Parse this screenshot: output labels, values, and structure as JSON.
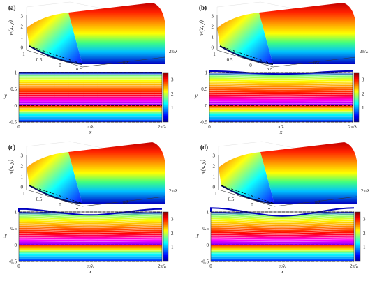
{
  "chart_data": [
    {
      "panel": "(a)",
      "type": "surface+heatmap",
      "surface": {
        "zlabel": "w(x, y)",
        "z_ticks": [
          "0",
          "1",
          "2",
          "3"
        ],
        "y_ticks": [
          "1",
          "0.5",
          "0",
          "-0.5"
        ],
        "x_ticks": [
          "π/λ",
          "2π/λ"
        ]
      },
      "contour": {
        "xlabel": "x",
        "ylabel": "y",
        "x_ticks": [
          "0",
          "π/λ",
          "2π/λ"
        ],
        "y_ticks": [
          "1",
          "0.5",
          "0",
          "-0.5"
        ],
        "ylim": [
          -0.5,
          1
        ],
        "top_boundary_amplitude": 0.0
      },
      "colorbar": {
        "ticks": [
          "1",
          "2",
          "3"
        ],
        "range": [
          0,
          3.5
        ]
      }
    },
    {
      "panel": "(b)",
      "type": "surface+heatmap",
      "surface": {
        "zlabel": "w(x, y)",
        "z_ticks": [
          "0",
          "1",
          "2",
          "3"
        ],
        "y_ticks": [
          "1",
          "0.5",
          "0",
          "-0.5"
        ],
        "x_ticks": [
          "π/λ",
          "2π/λ"
        ]
      },
      "contour": {
        "xlabel": "x",
        "ylabel": "y",
        "x_ticks": [
          "0",
          "π/λ",
          "2π/λ"
        ],
        "y_ticks": [
          "1",
          "0.5",
          "0",
          "-0.5"
        ],
        "ylim": [
          -0.5,
          1
        ],
        "top_boundary_amplitude": 0.03
      },
      "colorbar": {
        "ticks": [
          "1",
          "2",
          "3"
        ],
        "range": [
          0,
          3.5
        ]
      }
    },
    {
      "panel": "(c)",
      "type": "surface+heatmap",
      "surface": {
        "zlabel": "w(x, y)",
        "z_ticks": [
          "0",
          "1",
          "2",
          "3"
        ],
        "y_ticks": [
          "1",
          "0.5",
          "0",
          "-0.5"
        ],
        "x_ticks": [
          "π/λ",
          "2π/λ"
        ]
      },
      "contour": {
        "xlabel": "x",
        "ylabel": "y",
        "x_ticks": [
          "0",
          "π/λ",
          "2π/λ"
        ],
        "y_ticks": [
          "1",
          "0.5",
          "0",
          "-0.5"
        ],
        "ylim": [
          -0.5,
          1
        ],
        "top_boundary_amplitude": 0.06
      },
      "colorbar": {
        "ticks": [
          "1",
          "2",
          "3"
        ],
        "range": [
          0,
          3.5
        ]
      }
    },
    {
      "panel": "(d)",
      "type": "surface+heatmap",
      "surface": {
        "zlabel": "w(x, y)",
        "z_ticks": [
          "0",
          "1",
          "2",
          "3"
        ],
        "y_ticks": [
          "1",
          "0.5",
          "0",
          "-0.5"
        ],
        "x_ticks": [
          "π/λ",
          "2π/λ"
        ]
      },
      "contour": {
        "xlabel": "x",
        "ylabel": "y",
        "x_ticks": [
          "0",
          "π/λ",
          "2π/λ"
        ],
        "y_ticks": [
          "1",
          "0.5",
          "0",
          "-0.5"
        ],
        "ylim": [
          -0.5,
          1
        ],
        "top_boundary_amplitude": 0.08
      },
      "colorbar": {
        "ticks": [
          "1",
          "2",
          "3"
        ],
        "range": [
          0,
          3.5
        ]
      }
    }
  ]
}
